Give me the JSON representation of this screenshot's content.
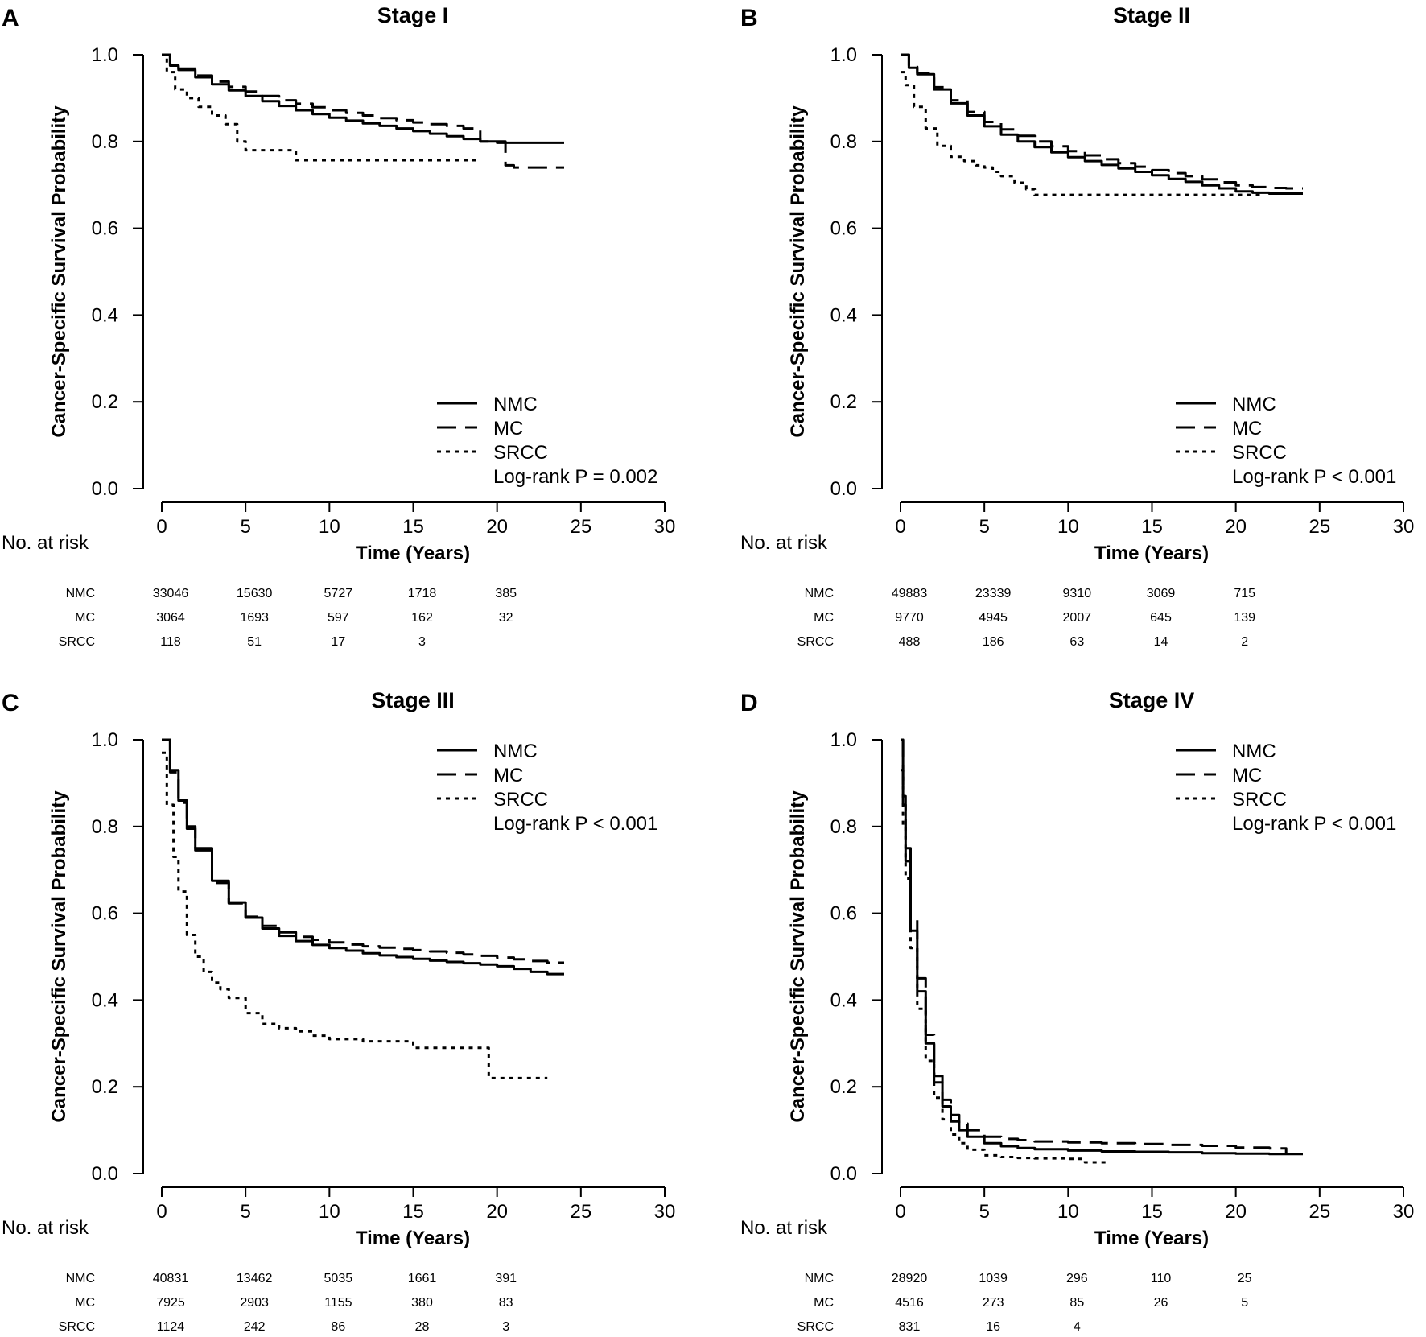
{
  "chart_data": [
    {
      "type": "line",
      "panel_letter": "A",
      "title": "Stage I",
      "xlabel": "Time (Years)",
      "ylabel": "Cancer-Specific Survival Probability",
      "xlim": [
        0,
        30
      ],
      "ylim": [
        0,
        1
      ],
      "xticks": [
        0,
        5,
        10,
        15,
        20,
        25,
        30
      ],
      "yticks": [
        "0.0",
        "0.2",
        "0.4",
        "0.6",
        "0.8",
        "1.0"
      ],
      "legend_position": "bottom-right",
      "pvalue": "Log-rank P = 0.002",
      "series": [
        {
          "name": "NMC",
          "style": "solid",
          "x": [
            0,
            0.5,
            1,
            2,
            3,
            4,
            5,
            6,
            7,
            8,
            9,
            10,
            11,
            12,
            13,
            14,
            15,
            16,
            17,
            18,
            19,
            20,
            21,
            22,
            23,
            24
          ],
          "y": [
            1.0,
            0.975,
            0.965,
            0.948,
            0.932,
            0.918,
            0.905,
            0.893,
            0.882,
            0.872,
            0.863,
            0.855,
            0.848,
            0.842,
            0.836,
            0.83,
            0.824,
            0.818,
            0.812,
            0.806,
            0.8,
            0.797,
            0.797,
            0.797,
            0.797,
            0.797
          ]
        },
        {
          "name": "MC",
          "style": "dashed",
          "x": [
            0,
            0.5,
            1,
            2,
            3,
            4,
            5,
            6,
            7,
            8,
            9,
            10,
            11,
            12,
            13,
            14,
            15,
            16,
            17,
            18,
            19,
            20,
            20.5,
            21,
            22,
            23,
            24
          ],
          "y": [
            1.0,
            0.978,
            0.968,
            0.952,
            0.938,
            0.926,
            0.915,
            0.905,
            0.895,
            0.887,
            0.879,
            0.872,
            0.866,
            0.86,
            0.854,
            0.849,
            0.844,
            0.84,
            0.836,
            0.83,
            0.8,
            0.8,
            0.745,
            0.74,
            0.74,
            0.74,
            0.74
          ]
        },
        {
          "name": "SRCC",
          "style": "dotted",
          "x": [
            0,
            0.3,
            0.8,
            1.5,
            2.2,
            3.0,
            3.8,
            4.5,
            5.0,
            6.0,
            7.0,
            8.0,
            10.0,
            12.0,
            15.0,
            18.0,
            19.0
          ],
          "y": [
            1.0,
            0.96,
            0.92,
            0.9,
            0.88,
            0.86,
            0.84,
            0.8,
            0.78,
            0.78,
            0.78,
            0.757,
            0.757,
            0.757,
            0.757,
            0.757,
            0.757
          ]
        }
      ],
      "risk_table": {
        "heading": "No. at risk",
        "times": [
          0,
          5,
          10,
          15,
          20
        ],
        "rows": [
          {
            "group": "NMC",
            "values": [
              "33046",
              "15630",
              "5727",
              "1718",
              "385"
            ]
          },
          {
            "group": "MC",
            "values": [
              "3064",
              "1693",
              "597",
              "162",
              "32"
            ]
          },
          {
            "group": "SRCC",
            "values": [
              "118",
              "51",
              "17",
              "3",
              ""
            ]
          }
        ]
      }
    },
    {
      "type": "line",
      "panel_letter": "B",
      "title": "Stage II",
      "xlabel": "Time (Years)",
      "ylabel": "Cancer-Specific Survival Probability",
      "xlim": [
        0,
        30
      ],
      "ylim": [
        0,
        1
      ],
      "xticks": [
        0,
        5,
        10,
        15,
        20,
        25,
        30
      ],
      "yticks": [
        "0.0",
        "0.2",
        "0.4",
        "0.6",
        "0.8",
        "1.0"
      ],
      "legend_position": "bottom-right",
      "pvalue": "Log-rank P < 0.001",
      "series": [
        {
          "name": "NMC",
          "style": "solid",
          "x": [
            0,
            0.5,
            1,
            2,
            3,
            4,
            5,
            6,
            7,
            8,
            9,
            10,
            11,
            12,
            13,
            14,
            15,
            16,
            17,
            18,
            19,
            20,
            21,
            22,
            23,
            24
          ],
          "y": [
            1.0,
            0.97,
            0.955,
            0.92,
            0.888,
            0.86,
            0.835,
            0.816,
            0.8,
            0.787,
            0.775,
            0.764,
            0.755,
            0.746,
            0.738,
            0.73,
            0.722,
            0.714,
            0.707,
            0.699,
            0.692,
            0.685,
            0.682,
            0.68,
            0.68,
            0.68
          ]
        },
        {
          "name": "MC",
          "style": "dashed",
          "x": [
            0,
            0.5,
            1,
            2,
            3,
            4,
            5,
            6,
            7,
            8,
            9,
            10,
            11,
            12,
            13,
            14,
            15,
            16,
            17,
            18,
            19,
            20,
            21,
            22,
            23,
            24
          ],
          "y": [
            1.0,
            0.972,
            0.958,
            0.925,
            0.895,
            0.868,
            0.845,
            0.828,
            0.813,
            0.8,
            0.789,
            0.778,
            0.768,
            0.759,
            0.75,
            0.742,
            0.734,
            0.727,
            0.72,
            0.713,
            0.706,
            0.699,
            0.695,
            0.693,
            0.692,
            0.692
          ]
        },
        {
          "name": "SRCC",
          "style": "dotted",
          "x": [
            0,
            0.3,
            0.8,
            1.5,
            2.2,
            3.0,
            3.8,
            4.5,
            5.0,
            5.5,
            6.0,
            6.8,
            7.5,
            8.0,
            10.0,
            12.0,
            14.0,
            16.0,
            18.0,
            20.0,
            21.5
          ],
          "y": [
            0.96,
            0.93,
            0.88,
            0.83,
            0.79,
            0.765,
            0.755,
            0.745,
            0.74,
            0.73,
            0.72,
            0.705,
            0.69,
            0.677,
            0.677,
            0.677,
            0.677,
            0.677,
            0.677,
            0.677,
            0.677
          ]
        }
      ],
      "risk_table": {
        "heading": "No. at risk",
        "times": [
          0,
          5,
          10,
          15,
          20
        ],
        "rows": [
          {
            "group": "NMC",
            "values": [
              "49883",
              "23339",
              "9310",
              "3069",
              "715"
            ]
          },
          {
            "group": "MC",
            "values": [
              "9770",
              "4945",
              "2007",
              "645",
              "139"
            ]
          },
          {
            "group": "SRCC",
            "values": [
              "488",
              "186",
              "63",
              "14",
              "2"
            ]
          }
        ]
      }
    },
    {
      "type": "line",
      "panel_letter": "C",
      "title": "Stage III",
      "xlabel": "Time (Years)",
      "ylabel": "Cancer-Specific Survival Probability",
      "xlim": [
        0,
        30
      ],
      "ylim": [
        0,
        1
      ],
      "xticks": [
        0,
        5,
        10,
        15,
        20,
        25,
        30
      ],
      "yticks": [
        "0.0",
        "0.2",
        "0.4",
        "0.6",
        "0.8",
        "1.0"
      ],
      "legend_position": "top-right",
      "pvalue": "Log-rank P < 0.001",
      "series": [
        {
          "name": "NMC",
          "style": "solid",
          "x": [
            0,
            0.5,
            1,
            1.5,
            2,
            3,
            4,
            5,
            6,
            7,
            8,
            9,
            10,
            11,
            12,
            13,
            14,
            15,
            16,
            17,
            18,
            19,
            20,
            21,
            22,
            23,
            24
          ],
          "y": [
            1.0,
            0.93,
            0.86,
            0.8,
            0.75,
            0.675,
            0.625,
            0.59,
            0.565,
            0.548,
            0.536,
            0.527,
            0.52,
            0.514,
            0.508,
            0.503,
            0.499,
            0.495,
            0.491,
            0.488,
            0.485,
            0.482,
            0.478,
            0.472,
            0.465,
            0.46,
            0.46
          ]
        },
        {
          "name": "MC",
          "style": "dashed",
          "x": [
            0,
            0.5,
            1,
            1.5,
            2,
            3,
            4,
            5,
            6,
            7,
            8,
            9,
            10,
            11,
            12,
            13,
            14,
            15,
            16,
            17,
            18,
            19,
            20,
            21,
            22,
            23,
            24
          ],
          "y": [
            1.0,
            0.925,
            0.855,
            0.795,
            0.745,
            0.67,
            0.623,
            0.592,
            0.571,
            0.556,
            0.546,
            0.539,
            0.533,
            0.528,
            0.524,
            0.521,
            0.518,
            0.515,
            0.512,
            0.509,
            0.505,
            0.502,
            0.498,
            0.494,
            0.49,
            0.486,
            0.486
          ]
        },
        {
          "name": "SRCC",
          "style": "dotted",
          "x": [
            0,
            0.3,
            0.7,
            1,
            1.5,
            2,
            2.5,
            3,
            3.5,
            4,
            5,
            6,
            7,
            8,
            9,
            10,
            12,
            14,
            15,
            17,
            19,
            19.5,
            21,
            23
          ],
          "y": [
            0.97,
            0.85,
            0.73,
            0.65,
            0.55,
            0.5,
            0.465,
            0.44,
            0.425,
            0.405,
            0.37,
            0.345,
            0.335,
            0.328,
            0.318,
            0.31,
            0.305,
            0.305,
            0.29,
            0.29,
            0.29,
            0.22,
            0.22,
            0.22
          ]
        }
      ],
      "risk_table": {
        "heading": "No. at risk",
        "times": [
          0,
          5,
          10,
          15,
          20
        ],
        "rows": [
          {
            "group": "NMC",
            "values": [
              "40831",
              "13462",
              "5035",
              "1661",
              "391"
            ]
          },
          {
            "group": "MC",
            "values": [
              "7925",
              "2903",
              "1155",
              "380",
              "83"
            ]
          },
          {
            "group": "SRCC",
            "values": [
              "1124",
              "242",
              "86",
              "28",
              "3"
            ]
          }
        ]
      }
    },
    {
      "type": "line",
      "panel_letter": "D",
      "title": "Stage IV",
      "xlabel": "Time (Years)",
      "ylabel": "Cancer-Specific Survival Probability",
      "xlim": [
        0,
        30
      ],
      "ylim": [
        0,
        1
      ],
      "xticks": [
        0,
        5,
        10,
        15,
        20,
        25,
        30
      ],
      "yticks": [
        "0.0",
        "0.2",
        "0.4",
        "0.6",
        "0.8",
        "1.0"
      ],
      "legend_position": "top-right",
      "pvalue": "Log-rank P < 0.001",
      "series": [
        {
          "name": "NMC",
          "style": "solid",
          "x": [
            0,
            0.15,
            0.3,
            0.6,
            1.0,
            1.5,
            2.0,
            2.5,
            3.0,
            3.5,
            4.0,
            5.0,
            6.0,
            7.0,
            8.0,
            10.0,
            12.0,
            14.0,
            16.0,
            18.0,
            20.0,
            22.0,
            24.0
          ],
          "y": [
            1.0,
            0.85,
            0.72,
            0.56,
            0.42,
            0.3,
            0.21,
            0.155,
            0.12,
            0.1,
            0.085,
            0.07,
            0.063,
            0.059,
            0.056,
            0.053,
            0.051,
            0.05,
            0.049,
            0.047,
            0.046,
            0.045,
            0.045
          ]
        },
        {
          "name": "MC",
          "style": "dashed",
          "x": [
            0,
            0.15,
            0.3,
            0.6,
            1.0,
            1.5,
            2.0,
            2.5,
            3.0,
            3.5,
            4.0,
            5.0,
            6.0,
            7.0,
            8.0,
            10.0,
            12.0,
            14.0,
            16.0,
            18.0,
            20.0,
            22.0,
            23.0
          ],
          "y": [
            1.0,
            0.87,
            0.75,
            0.59,
            0.45,
            0.32,
            0.225,
            0.17,
            0.135,
            0.115,
            0.1,
            0.085,
            0.08,
            0.077,
            0.074,
            0.072,
            0.07,
            0.068,
            0.066,
            0.064,
            0.06,
            0.058,
            0.045
          ]
        },
        {
          "name": "SRCC",
          "style": "dotted",
          "x": [
            0,
            0.15,
            0.3,
            0.6,
            1.0,
            1.5,
            2.0,
            2.5,
            3.0,
            3.5,
            4.0,
            5.0,
            6.0,
            7.0,
            8.0,
            10.0,
            11.0,
            12.5
          ],
          "y": [
            0.93,
            0.8,
            0.68,
            0.52,
            0.38,
            0.26,
            0.175,
            0.125,
            0.09,
            0.07,
            0.055,
            0.042,
            0.038,
            0.036,
            0.035,
            0.034,
            0.026,
            0.026
          ]
        }
      ],
      "risk_table": {
        "heading": "No. at risk",
        "times": [
          0,
          5,
          10,
          15,
          20
        ],
        "rows": [
          {
            "group": "NMC",
            "values": [
              "28920",
              "1039",
              "296",
              "110",
              "25"
            ]
          },
          {
            "group": "MC",
            "values": [
              "4516",
              "273",
              "85",
              "26",
              "5"
            ]
          },
          {
            "group": "SRCC",
            "values": [
              "831",
              "16",
              "4",
              "",
              ""
            ]
          }
        ]
      }
    }
  ]
}
